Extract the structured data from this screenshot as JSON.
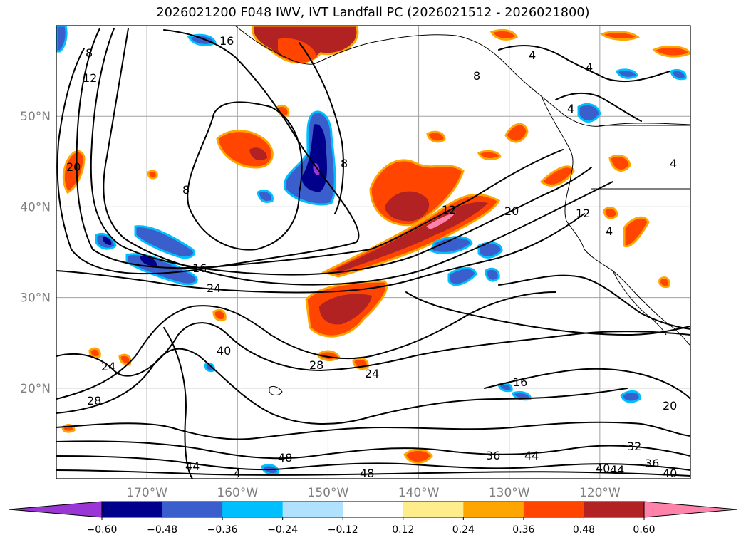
{
  "title": "2026021200 F048 IWV, IVT Landfall PC (2026021512 - 2026021800)",
  "map": {
    "projection": "plate-carree",
    "lon_range": [
      -180,
      -110
    ],
    "lat_range": [
      10,
      60
    ],
    "lon_ticks": [
      {
        "value": -170,
        "label": "170°W"
      },
      {
        "value": -160,
        "label": "160°W"
      },
      {
        "value": -150,
        "label": "150°W"
      },
      {
        "value": -140,
        "label": "140°W"
      },
      {
        "value": -130,
        "label": "130°W"
      },
      {
        "value": -120,
        "label": "120°W"
      }
    ],
    "lat_ticks": [
      {
        "value": 50,
        "label": "50°N"
      },
      {
        "value": 40,
        "label": "40°N"
      },
      {
        "value": 30,
        "label": "30°N"
      },
      {
        "value": 20,
        "label": "20°N"
      }
    ],
    "grid": true,
    "contour_labels": [
      "8",
      "12",
      "16",
      "20",
      "24",
      "28",
      "32",
      "36",
      "40",
      "44",
      "48",
      "4"
    ]
  },
  "chart_data": {
    "type": "heatmap",
    "title": "2026021200 F048 IWV, IVT Landfall PC (2026021512 - 2026021800)",
    "colorbar": {
      "extend": "both",
      "tick_values": [
        -0.6,
        -0.48,
        -0.36,
        -0.24,
        -0.12,
        0.12,
        0.24,
        0.36,
        0.48,
        0.6
      ],
      "tick_labels": [
        "−0.60",
        "−0.48",
        "−0.36",
        "−0.24",
        "−0.12",
        "0.12",
        "0.24",
        "0.36",
        "0.48",
        "0.60"
      ],
      "colors": [
        "#9a35d6",
        "#00008b",
        "#3a5fcd",
        "#00bfff",
        "#b0e2ff",
        "#ffffff",
        "#ffec8b",
        "#ffa500",
        "#ff4500",
        "#b22222",
        "#ff82ab"
      ]
    },
    "contour_levels_shown": [
      4,
      8,
      12,
      16,
      20,
      24,
      28,
      32,
      36,
      40,
      44,
      48
    ]
  }
}
